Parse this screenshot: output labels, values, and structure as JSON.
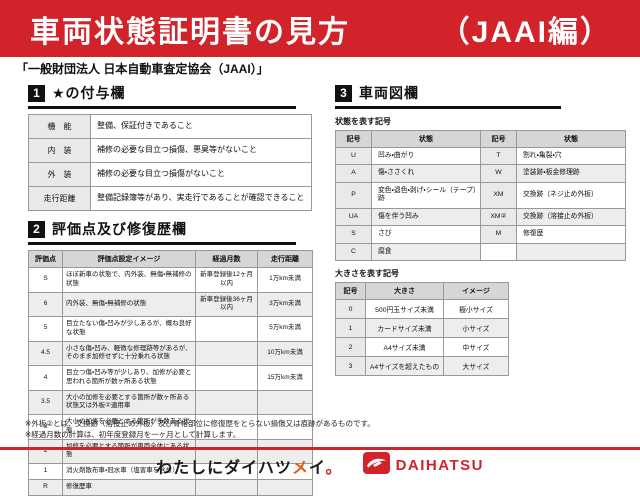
{
  "colors": {
    "accent": "#d2232a",
    "badge": "#111111",
    "thbg": "#d6d6d6",
    "stripe": "#ededed",
    "symbg": "#e9e9e9"
  },
  "header": {
    "title": "車両状態証明書の見方",
    "suffix": "（JAAI編）",
    "subtitle": "「一般財団法人 日本自動車査定協会（JAAI）」"
  },
  "section1": {
    "number": "1",
    "title": "★の付与欄",
    "rows": [
      {
        "label": "機　能",
        "desc": "整備、保証付きであること"
      },
      {
        "label": "内　装",
        "desc": "補修の必要な目立つ損傷、悪臭等がないこと"
      },
      {
        "label": "外　装",
        "desc": "補修の必要な目立つ損傷がないこと"
      },
      {
        "label": "走行距離",
        "desc": "整備記録簿等があり、実走行であることが確認できること"
      }
    ]
  },
  "section2": {
    "number": "2",
    "title": "評価点及び修復歴欄",
    "headers": [
      "評価点",
      "評価点設定イメージ",
      "経過月数",
      "走行距離"
    ],
    "rows": [
      {
        "grade": "S",
        "desc": "ほぼ新車の状態で、内外装、無傷・無補修の状態",
        "months": "新車登録後12ヶ月以内",
        "distance": "1万km未満"
      },
      {
        "grade": "6",
        "desc": "内外装、無傷・無補修の状態",
        "months": "新車登録後36ヶ月以内",
        "distance": "3万km未満"
      },
      {
        "grade": "5",
        "desc": "目立たない傷・凹みが少しあるが、概ね良好な状態",
        "months": "",
        "distance": "5万km未満"
      },
      {
        "grade": "4.5",
        "desc": "小さな傷・凹み、軽微な修理跡等があるが、そのまま加修せずに十分乗れる状態",
        "months": "",
        "distance": "10万km未満"
      },
      {
        "grade": "4",
        "desc": "目立つ傷・凹み等が少しあり、加修が必要と思われる箇所が数ヶ所ある状態",
        "months": "",
        "distance": "15万km未満"
      },
      {
        "grade": "3.5",
        "desc": "大小の加修を必要とする箇所が数ヶ所ある状態又は外板②適用車",
        "months": "",
        "distance": ""
      },
      {
        "grade": "3",
        "desc": "大小の加修を必要とする箇所が多数ある状態",
        "months": "",
        "distance": ""
      },
      {
        "grade": "2",
        "desc": "加修を必要とする箇所が車両全体にある状態",
        "months": "",
        "distance": ""
      },
      {
        "grade": "1",
        "desc": "消火剤散布車・冠水車（塩害車を含む）",
        "months": "",
        "distance": ""
      },
      {
        "grade": "R",
        "desc": "修復歴車",
        "months": "",
        "distance": ""
      }
    ]
  },
  "section3": {
    "number": "3",
    "title": "車両図欄",
    "condition": {
      "caption": "状態を表す記号",
      "headers": [
        "記号",
        "状態",
        "記号",
        "状態"
      ],
      "rows": [
        [
          "U",
          "凹み・曲がり",
          "T",
          "割れ・亀裂・穴"
        ],
        [
          "A",
          "傷・ささくれ",
          "W",
          "塗装跡・板金修理跡"
        ],
        [
          "P",
          "変色・退色・剥げ・シール（テープ）跡",
          "XM",
          "交換跡（ネジ止め外板）"
        ],
        [
          "UA",
          "傷を伴う凹み",
          "XM②",
          "交換跡（溶接止め外板）"
        ],
        [
          "S",
          "さび",
          "M",
          "修復歴"
        ],
        [
          "C",
          "腐食",
          "",
          ""
        ]
      ]
    },
    "size": {
      "caption": "大きさを表す記号",
      "headers": [
        "記号",
        "大きさ",
        "イメージ"
      ],
      "rows": [
        [
          "0",
          "500円玉サイズ未満",
          "極小サイズ"
        ],
        [
          "1",
          "カードサイズ未満",
          "小サイズ"
        ],
        [
          "2",
          "A4サイズ未満",
          "中サイズ"
        ],
        [
          "3",
          "A4サイズを超えたもの",
          "大サイズ"
        ]
      ]
    }
  },
  "notes": [
    "※外板②とは、交換跡（溶接止め外板）及び骨格部位に修復歴をとらない損傷又は痕跡があるものです。",
    "※経過月数の計算は、初年度登録月を一ヶ月として計算します。"
  ],
  "footer": {
    "slogan": "わたしにダイハツメイ。",
    "slogan_colors": [
      "#1a1a1a",
      "#1a1a1a",
      "#1a1a1a",
      "#1a1a1a",
      "#1a1a1a",
      "#1a1a1a",
      "#1a1a1a",
      "#1a1a1a",
      "#e3570f",
      "#1a1a1a",
      "#d2232a"
    ],
    "brand": "DAIHATSU"
  }
}
